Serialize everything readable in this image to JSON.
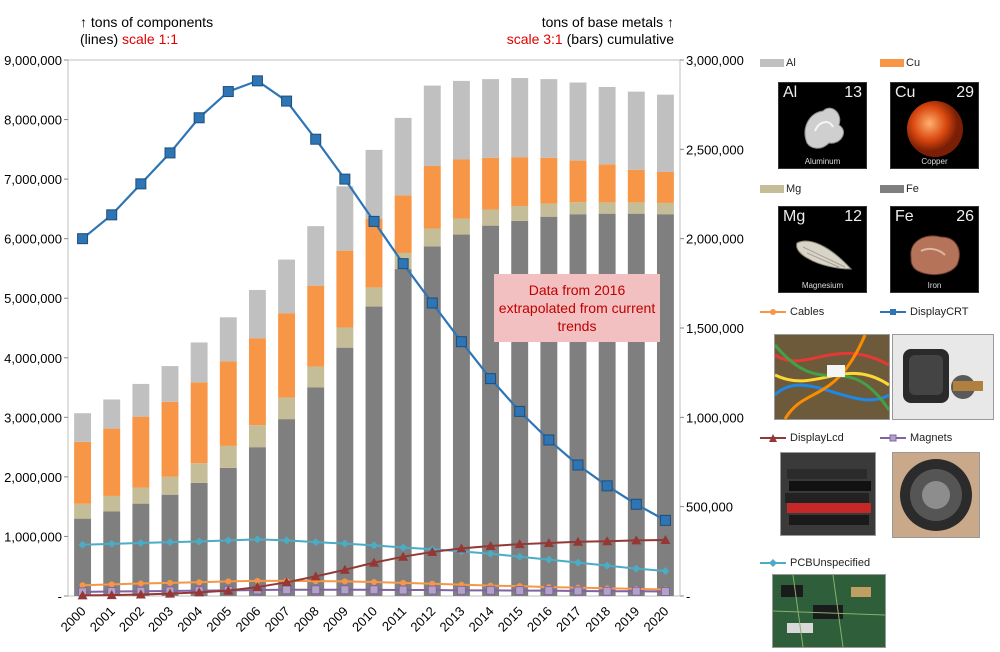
{
  "header": {
    "left_line1": "↑ tons of components",
    "left_line2_a": "(lines)",
    "left_line2_b": "scale 1:1",
    "right_line1": "tons of base metals ↑",
    "right_line2_a": "scale 3:1",
    "right_line2_b": "(bars) cumulative"
  },
  "annotation": "Data from 2016 extrapolated from current trends",
  "legend": {
    "Al": "Al",
    "Cu": "Cu",
    "Mg": "Mg",
    "Fe": "Fe",
    "Cables": "Cables",
    "DisplayCRT": "DisplayCRT",
    "DisplayLcd": "DisplayLcd",
    "Magnets": "Magnets",
    "PCBUnspecified": "PCBUnspecified"
  },
  "tiles": {
    "al": {
      "symbol": "Al",
      "number": "13",
      "name": "Aluminum"
    },
    "cu": {
      "symbol": "Cu",
      "number": "29",
      "name": "Copper"
    },
    "mg": {
      "symbol": "Mg",
      "number": "12",
      "name": "Magnesium"
    },
    "fe": {
      "symbol": "Fe",
      "number": "26",
      "name": "Iron"
    }
  },
  "colors": {
    "Al": "#c0c0c0",
    "Cu": "#f79646",
    "Mg": "#c4bd97",
    "Fe": "#7f7f7f",
    "Cables": "#f79646",
    "DisplayCRT": "#2e75b6",
    "DisplayLcd": "#953735",
    "Magnets": "#8064a2",
    "PCBUnspecified": "#4bacc6"
  },
  "chart_data": {
    "type": "bar",
    "title": "",
    "categories": [
      "2000",
      "2001",
      "2002",
      "2003",
      "2004",
      "2005",
      "2006",
      "2007",
      "2008",
      "2009",
      "2010",
      "2011",
      "2012",
      "2013",
      "2014",
      "2015",
      "2016",
      "2017",
      "2018",
      "2019",
      "2020"
    ],
    "left_axis": {
      "ylim": [
        0,
        9000000
      ],
      "ticks": [
        "-",
        "1,000,000",
        "2,000,000",
        "3,000,000",
        "4,000,000",
        "5,000,000",
        "6,000,000",
        "7,000,000",
        "8,000,000",
        "9,000,000"
      ]
    },
    "right_axis": {
      "ylim": [
        0,
        3000000
      ],
      "ticks": [
        "-",
        "500,000",
        "1,000,000",
        "1,500,000",
        "2,000,000",
        "2,500,000",
        "3,000,000"
      ]
    },
    "bars_stacked_right_axis": [
      {
        "name": "Fe",
        "values": [
          433000,
          473000,
          517000,
          567000,
          633000,
          717000,
          833000,
          990000,
          1167000,
          1390000,
          1620000,
          1830000,
          1957000,
          2023000,
          2073000,
          2100000,
          2123000,
          2137000,
          2140000,
          2140000,
          2137000
        ]
      },
      {
        "name": "Mg",
        "values": [
          83000,
          87000,
          90000,
          100000,
          110000,
          123000,
          123000,
          120000,
          117000,
          113000,
          107000,
          90000,
          100000,
          90000,
          90000,
          83000,
          73000,
          67000,
          63000,
          63000,
          63000
        ]
      },
      {
        "name": "Cu",
        "values": [
          347000,
          377000,
          397000,
          420000,
          453000,
          473000,
          487000,
          473000,
          453000,
          430000,
          383000,
          323000,
          350000,
          330000,
          290000,
          273000,
          257000,
          233000,
          213000,
          183000,
          173000
        ]
      },
      {
        "name": "Al",
        "values": [
          160000,
          163000,
          183000,
          200000,
          223000,
          247000,
          270000,
          300000,
          333000,
          360000,
          387000,
          433000,
          450000,
          440000,
          440000,
          443000,
          440000,
          437000,
          433000,
          437000,
          433000
        ]
      }
    ],
    "lines_left_axis": [
      {
        "name": "Cables",
        "values": [
          180000,
          195000,
          210000,
          220000,
          230000,
          245000,
          255000,
          255000,
          250000,
          245000,
          235000,
          220000,
          205000,
          190000,
          175000,
          165000,
          150000,
          140000,
          130000,
          120000,
          110000
        ]
      },
      {
        "name": "DisplayCRT",
        "values": [
          6000000,
          6400000,
          6920000,
          7440000,
          8030000,
          8470000,
          8650000,
          8310000,
          7670000,
          7000000,
          6290000,
          5580000,
          4920000,
          4270000,
          3650000,
          3100000,
          2620000,
          2200000,
          1850000,
          1540000,
          1270000
        ]
      },
      {
        "name": "DisplayLcd",
        "values": [
          10000,
          15000,
          25000,
          40000,
          60000,
          90000,
          150000,
          230000,
          330000,
          440000,
          560000,
          660000,
          740000,
          800000,
          840000,
          870000,
          890000,
          910000,
          920000,
          935000,
          940000
        ]
      },
      {
        "name": "Magnets",
        "values": [
          70000,
          75000,
          80000,
          85000,
          90000,
          95000,
          100000,
          105000,
          105000,
          105000,
          105000,
          100000,
          100000,
          95000,
          95000,
          90000,
          90000,
          85000,
          80000,
          80000,
          75000
        ]
      },
      {
        "name": "PCBUnspecified",
        "values": [
          860000,
          875000,
          890000,
          905000,
          915000,
          935000,
          950000,
          935000,
          905000,
          880000,
          850000,
          815000,
          785000,
          750000,
          710000,
          660000,
          610000,
          560000,
          510000,
          460000,
          420000
        ]
      }
    ]
  }
}
